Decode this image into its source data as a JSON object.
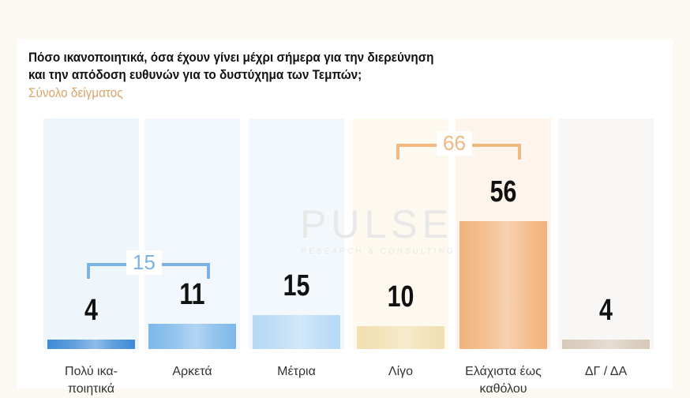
{
  "title_line1": "Πόσο ικανοποιητικά, όσα έχουν γίνει μέχρι σήμερα για την διερεύνηση",
  "title_line2": "και την απόδοση ευθυνών για το δυστύχημα των Τεμπών;",
  "subtitle": "Σύνολο δείγματος",
  "watermark": "PULSE RESEARCH & CONSULTING",
  "chart_data": {
    "type": "bar",
    "title": "Πόσο ικανοποιητικά, όσα έχουν γίνει μέχρι σήμερα για την διερεύνηση και την απόδοση ευθυνών για το δυστύχημα των Τεμπών;",
    "categories": [
      "Πολύ ικανοποιητικά",
      "Αρκετά",
      "Μέτρια",
      "Λίγο",
      "Ελάχιστα έως καθόλου",
      "ΔΓ / ΔΑ"
    ],
    "labels": [
      "Πολύ ικα-ποιητικά",
      "Αρκετά",
      "Μέτρια",
      "Λίγο",
      "Ελάχιστα έως καθόλου",
      "ΔΓ / ΔΑ"
    ],
    "values": [
      4,
      11,
      15,
      10,
      56,
      4
    ],
    "value_labels": [
      "4",
      "11",
      "15",
      "10",
      "56",
      "4"
    ],
    "colors": [
      "#3d8ad6",
      "#7db8ea",
      "#b6d9f5",
      "#f1dfb0",
      "#f2b37c",
      "#d6c9b8"
    ],
    "groups": [
      {
        "label": "15",
        "value": 15,
        "from": 0,
        "to": 1,
        "color": "#7db3e4"
      },
      {
        "label": "66",
        "value": 66,
        "from": 3,
        "to": 4,
        "color": "#f0b882"
      }
    ],
    "ylim": [
      0,
      100
    ]
  }
}
